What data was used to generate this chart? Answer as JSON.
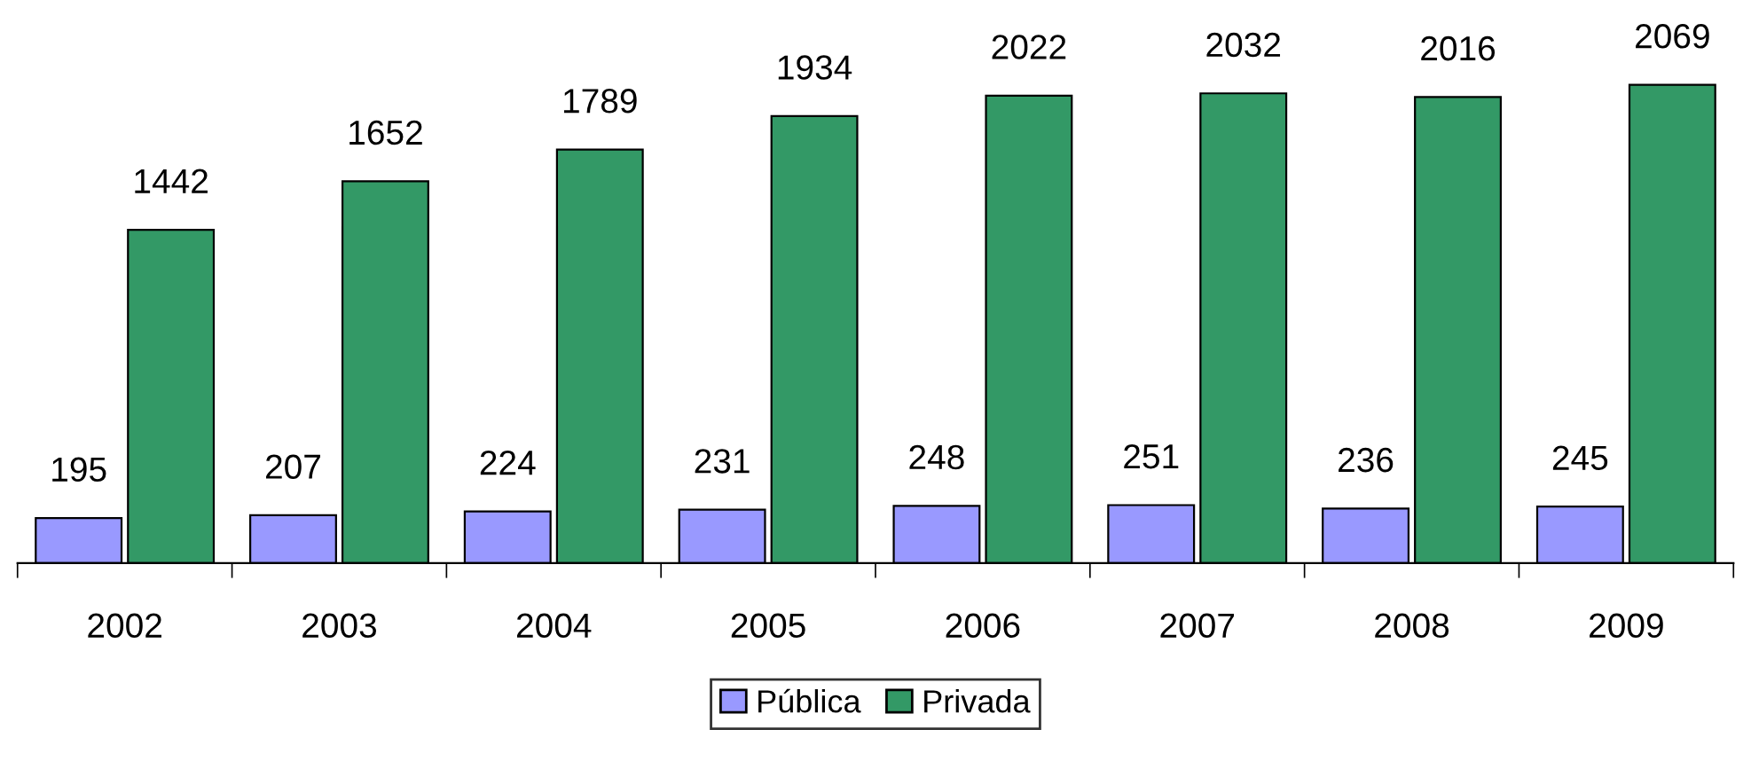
{
  "chart_data": {
    "type": "bar",
    "categories": [
      "2002",
      "2003",
      "2004",
      "2005",
      "2006",
      "2007",
      "2008",
      "2009"
    ],
    "series": [
      {
        "name": "Pública",
        "color": "#9999ff",
        "values": [
          195,
          207,
          224,
          231,
          248,
          251,
          236,
          245
        ]
      },
      {
        "name": "Privada",
        "color": "#339966",
        "values": [
          1442,
          1652,
          1789,
          1934,
          2022,
          2032,
          2016,
          2069
        ]
      }
    ],
    "data_labels": true,
    "grid": false,
    "legend": "bottom",
    "tick_labels": "x"
  }
}
